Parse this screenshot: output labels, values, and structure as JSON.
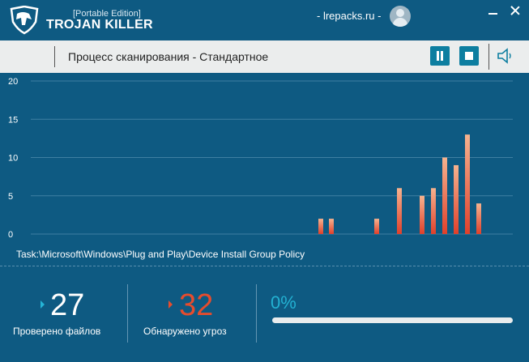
{
  "app": {
    "edition": "[Portable Edition]",
    "name": "TROJAN KILLER",
    "site": "- lrepacks.ru -",
    "colors": {
      "background": "#0e5a82",
      "accent": "#23b1d2",
      "threat": "#e74c2d",
      "bar": "#f2a07a"
    }
  },
  "toolbar": {
    "scan_title": "Процесс сканирования - Стандартное",
    "icons": [
      "pause-icon",
      "stop-icon",
      "speaker-icon"
    ]
  },
  "chart_data": {
    "type": "bar",
    "ylim": [
      0,
      20
    ],
    "yticks": [
      20,
      15,
      10,
      5,
      0
    ],
    "grid": true,
    "values": [
      0,
      0,
      0,
      0,
      0,
      0,
      0,
      0,
      0,
      0,
      0,
      0,
      0,
      0,
      0,
      0,
      0,
      0,
      0,
      0,
      0,
      0,
      0,
      0,
      0,
      0,
      0,
      2,
      2,
      0,
      0,
      0,
      2,
      0,
      6,
      0,
      5,
      6,
      10,
      9,
      13,
      4,
      0,
      0,
      0
    ],
    "x_positions": [
      0,
      0,
      0,
      0,
      0,
      0,
      0,
      0,
      0,
      0,
      0,
      0,
      0,
      0,
      0,
      0,
      0,
      0,
      0,
      0,
      0,
      0,
      0,
      0,
      0,
      0,
      0,
      393,
      406,
      0,
      0,
      0,
      462,
      0,
      490,
      0,
      518,
      532,
      546,
      560,
      574,
      588,
      0,
      0,
      0
    ]
  },
  "scan": {
    "current_path": "Task:\\Microsoft\\Windows\\Plug and Play\\Device Install Group Policy",
    "checked_count": "27",
    "checked_label": "Проверено файлов",
    "threats_count": "32",
    "threats_label": "Обнаружено угроз",
    "progress_text": "0%",
    "progress_value": 0
  }
}
